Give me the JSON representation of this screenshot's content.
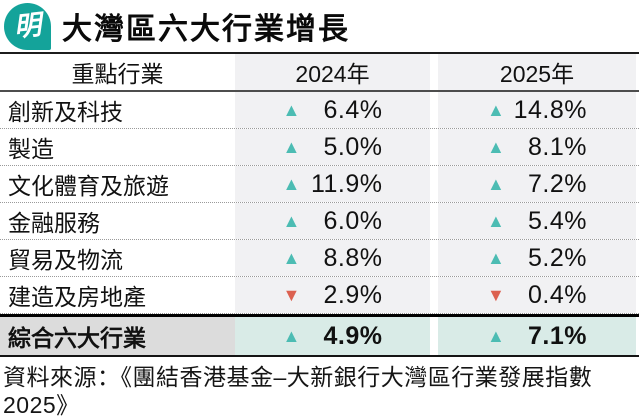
{
  "header": {
    "logo_char": "明",
    "title": "大灣區六大行業增長"
  },
  "table": {
    "columns": {
      "industry": "重點行業",
      "y2024": "2024年",
      "y2025": "2025年"
    },
    "rows": [
      {
        "label": "創新及科技",
        "y2024": {
          "direction": "up",
          "value": "6.4%"
        },
        "y2025": {
          "direction": "up",
          "value": "14.8%"
        }
      },
      {
        "label": "製造",
        "y2024": {
          "direction": "up",
          "value": "5.0%"
        },
        "y2025": {
          "direction": "up",
          "value": "8.1%"
        }
      },
      {
        "label": "文化體育及旅遊",
        "y2024": {
          "direction": "up",
          "value": "11.9%"
        },
        "y2025": {
          "direction": "up",
          "value": "7.2%"
        }
      },
      {
        "label": "金融服務",
        "y2024": {
          "direction": "up",
          "value": "6.0%"
        },
        "y2025": {
          "direction": "up",
          "value": "5.4%"
        }
      },
      {
        "label": "貿易及物流",
        "y2024": {
          "direction": "up",
          "value": "8.8%"
        },
        "y2025": {
          "direction": "up",
          "value": "5.2%"
        }
      },
      {
        "label": "建造及房地產",
        "y2024": {
          "direction": "down",
          "value": "2.9%"
        },
        "y2025": {
          "direction": "down",
          "value": "0.4%"
        }
      }
    ],
    "total_row": {
      "label": "綜合六大行業",
      "y2024": {
        "direction": "up",
        "value": "4.9%"
      },
      "y2025": {
        "direction": "up",
        "value": "7.1%"
      }
    }
  },
  "footer": {
    "source": "資料來源：《團結香港基金–大新銀行大灣區行業發展指數2025》"
  },
  "colors": {
    "logo_teal": "#14a39a",
    "up_triangle": "#4cbcb3",
    "down_triangle": "#dc6150",
    "column_bg": "#f1f1f3",
    "total_label_bg": "#dcdcdc",
    "total_value_bg": "#d9ebe7"
  },
  "chart_data": {
    "type": "table",
    "title": "大灣區六大行業增長",
    "categories": [
      "創新及科技",
      "製造",
      "文化體育及旅遊",
      "金融服務",
      "貿易及物流",
      "建造及房地產",
      "綜合六大行業"
    ],
    "series": [
      {
        "name": "2024年",
        "values": [
          6.4,
          5.0,
          11.9,
          6.0,
          8.8,
          -2.9,
          4.9
        ]
      },
      {
        "name": "2025年",
        "values": [
          14.8,
          8.1,
          7.2,
          5.4,
          5.2,
          -0.4,
          7.1
        ]
      }
    ],
    "units": "%",
    "legend_position": "header-row",
    "grid": "dotted-row-separators",
    "annotations": [
      "資料來源：《團結香港基金–大新銀行大灣區行業發展指數2025》"
    ]
  }
}
